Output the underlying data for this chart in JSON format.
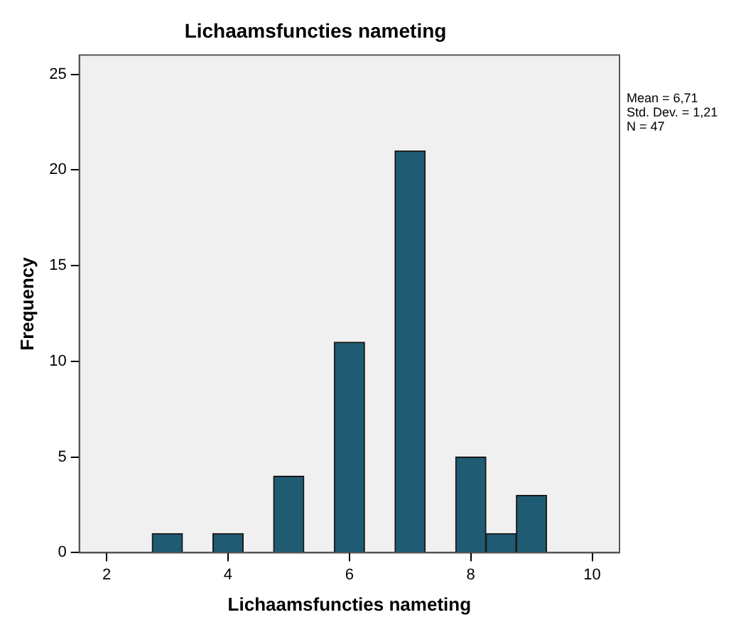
{
  "chart_data": {
    "type": "histogram",
    "title": "Lichaamsfuncties nameting",
    "xlabel": "Lichaamsfuncties nameting",
    "ylabel": "Frequency",
    "bins": [
      2.75,
      3.25,
      3.75,
      4.25,
      4.75,
      5.25,
      5.75,
      6.25,
      6.75,
      7.25,
      7.75,
      8.25,
      8.75,
      9.25
    ],
    "values": [
      1,
      0,
      1,
      0,
      4,
      0,
      11,
      0,
      21,
      0,
      5,
      1,
      3
    ],
    "color": "#1f5c73",
    "xlim": [
      1.55,
      10.45
    ],
    "xticks": [
      2,
      4,
      6,
      8,
      10
    ],
    "ylim": [
      0,
      26
    ],
    "yticks": [
      0,
      5,
      10,
      15,
      20,
      25
    ],
    "grid": false,
    "legend": false,
    "annotations": [
      "Mean = 6,71",
      "Std. Dev. = 1,21",
      "N = 47"
    ]
  }
}
